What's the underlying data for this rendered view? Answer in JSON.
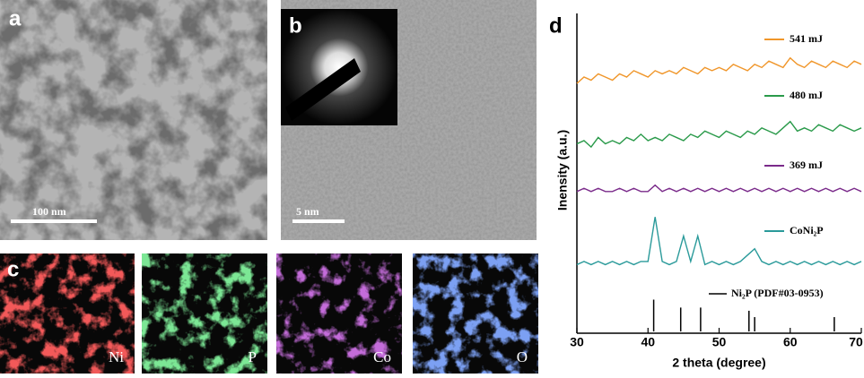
{
  "panels": {
    "a": {
      "label": "a",
      "scale_bar": "100 nm"
    },
    "b": {
      "label": "b",
      "scale_bar": "5 nm"
    },
    "c": {
      "label": "c",
      "maps": [
        "Ni",
        "P",
        "Co",
        "O"
      ]
    },
    "d": {
      "label": "d"
    }
  },
  "chart_data": {
    "type": "line",
    "xlabel": "2 theta (degree)",
    "ylabel": "Inensity (a.u.)",
    "xlim": [
      30,
      70
    ],
    "xticks": [
      30,
      40,
      50,
      60,
      70
    ],
    "ylim": [
      0,
      100
    ],
    "x": [
      30,
      31,
      32,
      33,
      34,
      35,
      36,
      37,
      38,
      39,
      40,
      41,
      42,
      43,
      44,
      45,
      46,
      47,
      48,
      49,
      50,
      51,
      52,
      53,
      54,
      55,
      56,
      57,
      58,
      59,
      60,
      61,
      62,
      63,
      64,
      65,
      66,
      67,
      68,
      69,
      70
    ],
    "series": [
      {
        "name": "541 mJ",
        "color": "#f0962a",
        "values": [
          78,
          80,
          79,
          81,
          80,
          79,
          81,
          80,
          82,
          81,
          80,
          82,
          81,
          82,
          81,
          83,
          82,
          81,
          83,
          82,
          83,
          82,
          84,
          83,
          82,
          84,
          83,
          85,
          84,
          83,
          86,
          84,
          83,
          85,
          84,
          83,
          85,
          84,
          83,
          85,
          84
        ]
      },
      {
        "name": "480 mJ",
        "color": "#2a9a4a",
        "values": [
          59,
          60,
          58,
          61,
          59,
          60,
          59,
          61,
          60,
          62,
          60,
          61,
          60,
          62,
          61,
          60,
          62,
          61,
          63,
          62,
          61,
          63,
          62,
          61,
          63,
          62,
          64,
          63,
          62,
          64,
          66,
          63,
          64,
          63,
          65,
          64,
          63,
          65,
          64,
          63,
          64
        ]
      },
      {
        "name": "369 mJ",
        "color": "#7a2a8a",
        "values": [
          44,
          45,
          44,
          45,
          44,
          44,
          45,
          44,
          45,
          44,
          44,
          46,
          44,
          45,
          44,
          45,
          44,
          45,
          44,
          45,
          44,
          45,
          44,
          45,
          44,
          45,
          44,
          45,
          44,
          45,
          44,
          45,
          44,
          45,
          44,
          45,
          44,
          45,
          44,
          45,
          44
        ]
      },
      {
        "name": "CoNi₂P",
        "color": "#2a9a9a",
        "values": [
          21,
          22,
          21,
          22,
          21,
          22,
          21,
          22,
          21,
          22,
          22,
          36,
          22,
          21,
          22,
          30,
          22,
          30,
          21,
          22,
          21,
          22,
          21,
          22,
          24,
          26,
          22,
          21,
          22,
          21,
          22,
          21,
          22,
          21,
          22,
          21,
          22,
          21,
          22,
          21,
          22
        ]
      }
    ],
    "reference": {
      "name": "Ni₂P (PDF#03-0953)",
      "color": "#000000",
      "positions": [
        40.8,
        44.6,
        47.4,
        54.2,
        55.0,
        66.2
      ],
      "values": [
        10,
        7.5,
        7.5,
        6.5,
        4.5,
        4.5
      ]
    }
  }
}
